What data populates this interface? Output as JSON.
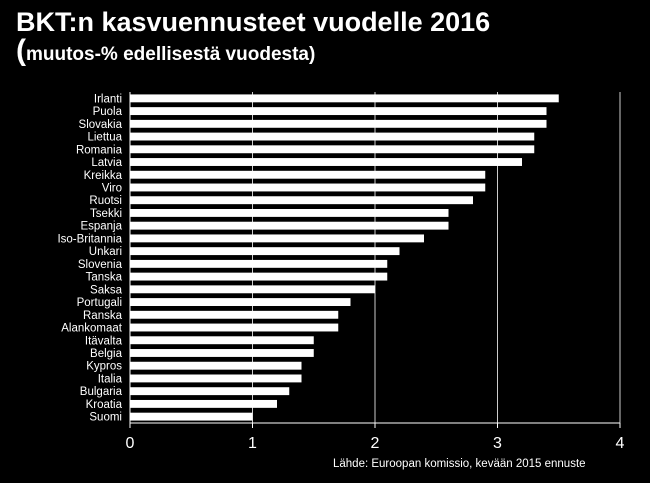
{
  "header": {
    "title": "BKT:n kasvuennusteet vuodelle 2016",
    "subtitle_paren": "(",
    "subtitle_text": "muutos-% edellisestä vuodesta)"
  },
  "source_note": "Lähde: Euroopan komissio, kevään 2015 ennuste",
  "colors": {
    "background": "#000000",
    "bar": "#ffffff",
    "grid": "#ffffff",
    "text": "#ffffff"
  },
  "chart_data": {
    "type": "bar",
    "orientation": "horizontal",
    "categories": [
      "Irlanti",
      "Puola",
      "Slovakia",
      "Liettua",
      "Romania",
      "Latvia",
      "Kreikka",
      "Viro",
      "Ruotsi",
      "Tsekki",
      "Espanja",
      "Iso-Britannia",
      "Unkari",
      "Slovenia",
      "Tanska",
      "Saksa",
      "Portugali",
      "Ranska",
      "Alankomaat",
      "Itävalta",
      "Belgia",
      "Kypros",
      "Italia",
      "Bulgaria",
      "Kroatia",
      "Suomi"
    ],
    "values": [
      3.5,
      3.4,
      3.4,
      3.3,
      3.3,
      3.2,
      2.9,
      2.9,
      2.8,
      2.6,
      2.6,
      2.4,
      2.2,
      2.1,
      2.1,
      2.0,
      1.8,
      1.7,
      1.7,
      1.5,
      1.5,
      1.4,
      1.4,
      1.3,
      1.2,
      1.0
    ],
    "xlim": [
      0,
      4
    ],
    "xticks": [
      "0",
      "1",
      "2",
      "3",
      "4"
    ],
    "grid": true
  }
}
